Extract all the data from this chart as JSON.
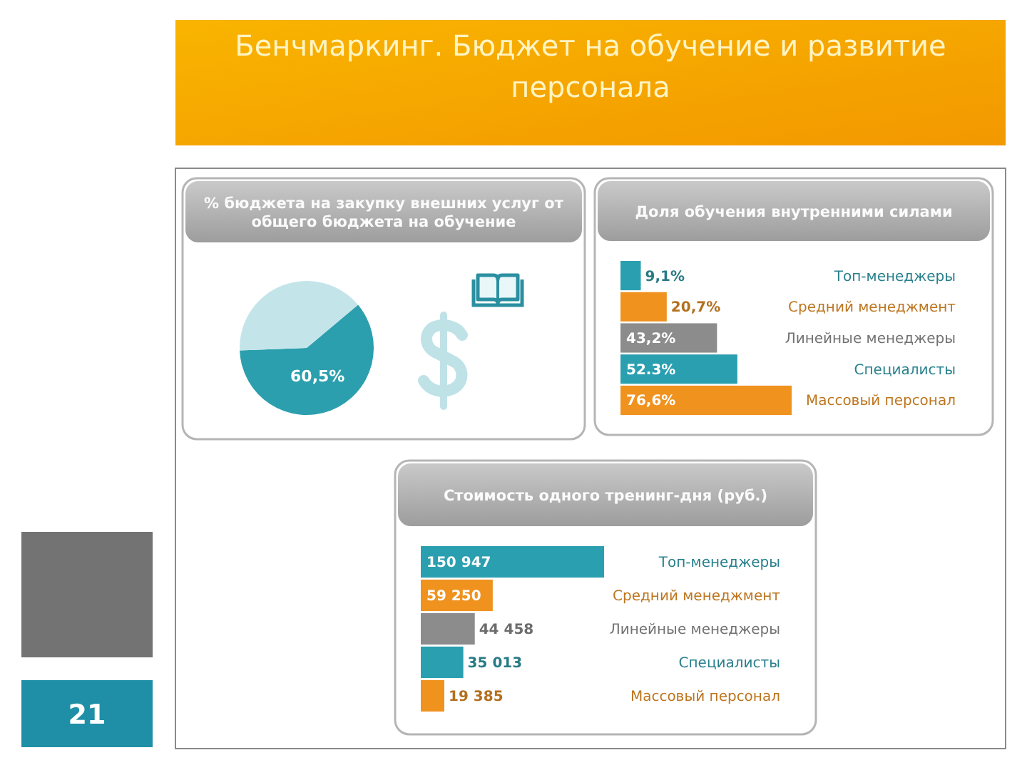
{
  "chart_data": [
    {
      "type": "other",
      "title": "Бенчмаркинг. Бюджет на обучение и развитие персонала",
      "annotations": [
        "21"
      ]
    },
    {
      "type": "pie",
      "title": "% бюджета на закупку внешних услуг от общего бюджета на обучение",
      "categories": [
        null,
        null
      ],
      "values": [
        60.5,
        39.5
      ],
      "colors": [
        "#2b9fae",
        "#c3e5ea"
      ],
      "value_labels": [
        "60,5%",
        null
      ]
    },
    {
      "type": "bar",
      "orientation": "horizontal",
      "title": "Доля обучения внутренними силами",
      "categories": [
        "Топ-менеджеры",
        "Средний менеджмент",
        "Линейные менеджеры",
        "Специалисты",
        "Массовый персонал"
      ],
      "values": [
        9.1,
        20.7,
        43.2,
        52.3,
        76.6
      ],
      "colors": [
        "#2a9fb0",
        "#f0921e",
        "#8c8c8c",
        "#2a9fb0",
        "#f0921e"
      ],
      "value_labels": [
        "9,1%",
        "20,7%",
        "43,2%",
        "52.3%",
        "76,6%"
      ]
    },
    {
      "type": "bar",
      "orientation": "horizontal",
      "title": "Стоимость одного тренинг-дня (руб.)",
      "categories": [
        "Топ-менеджеры",
        "Средний менеджмент",
        "Линейные менеджеры",
        "Специалисты",
        "Массовый персонал"
      ],
      "values": [
        150947,
        59250,
        44458,
        35013,
        19385
      ],
      "colors": [
        "#2a9fb0",
        "#f0921e",
        "#8c8c8c",
        "#2a9fb0",
        "#f0921e"
      ],
      "value_labels": [
        "150 947",
        "59 250",
        "44 458",
        "35 013",
        "19 385"
      ]
    }
  ]
}
